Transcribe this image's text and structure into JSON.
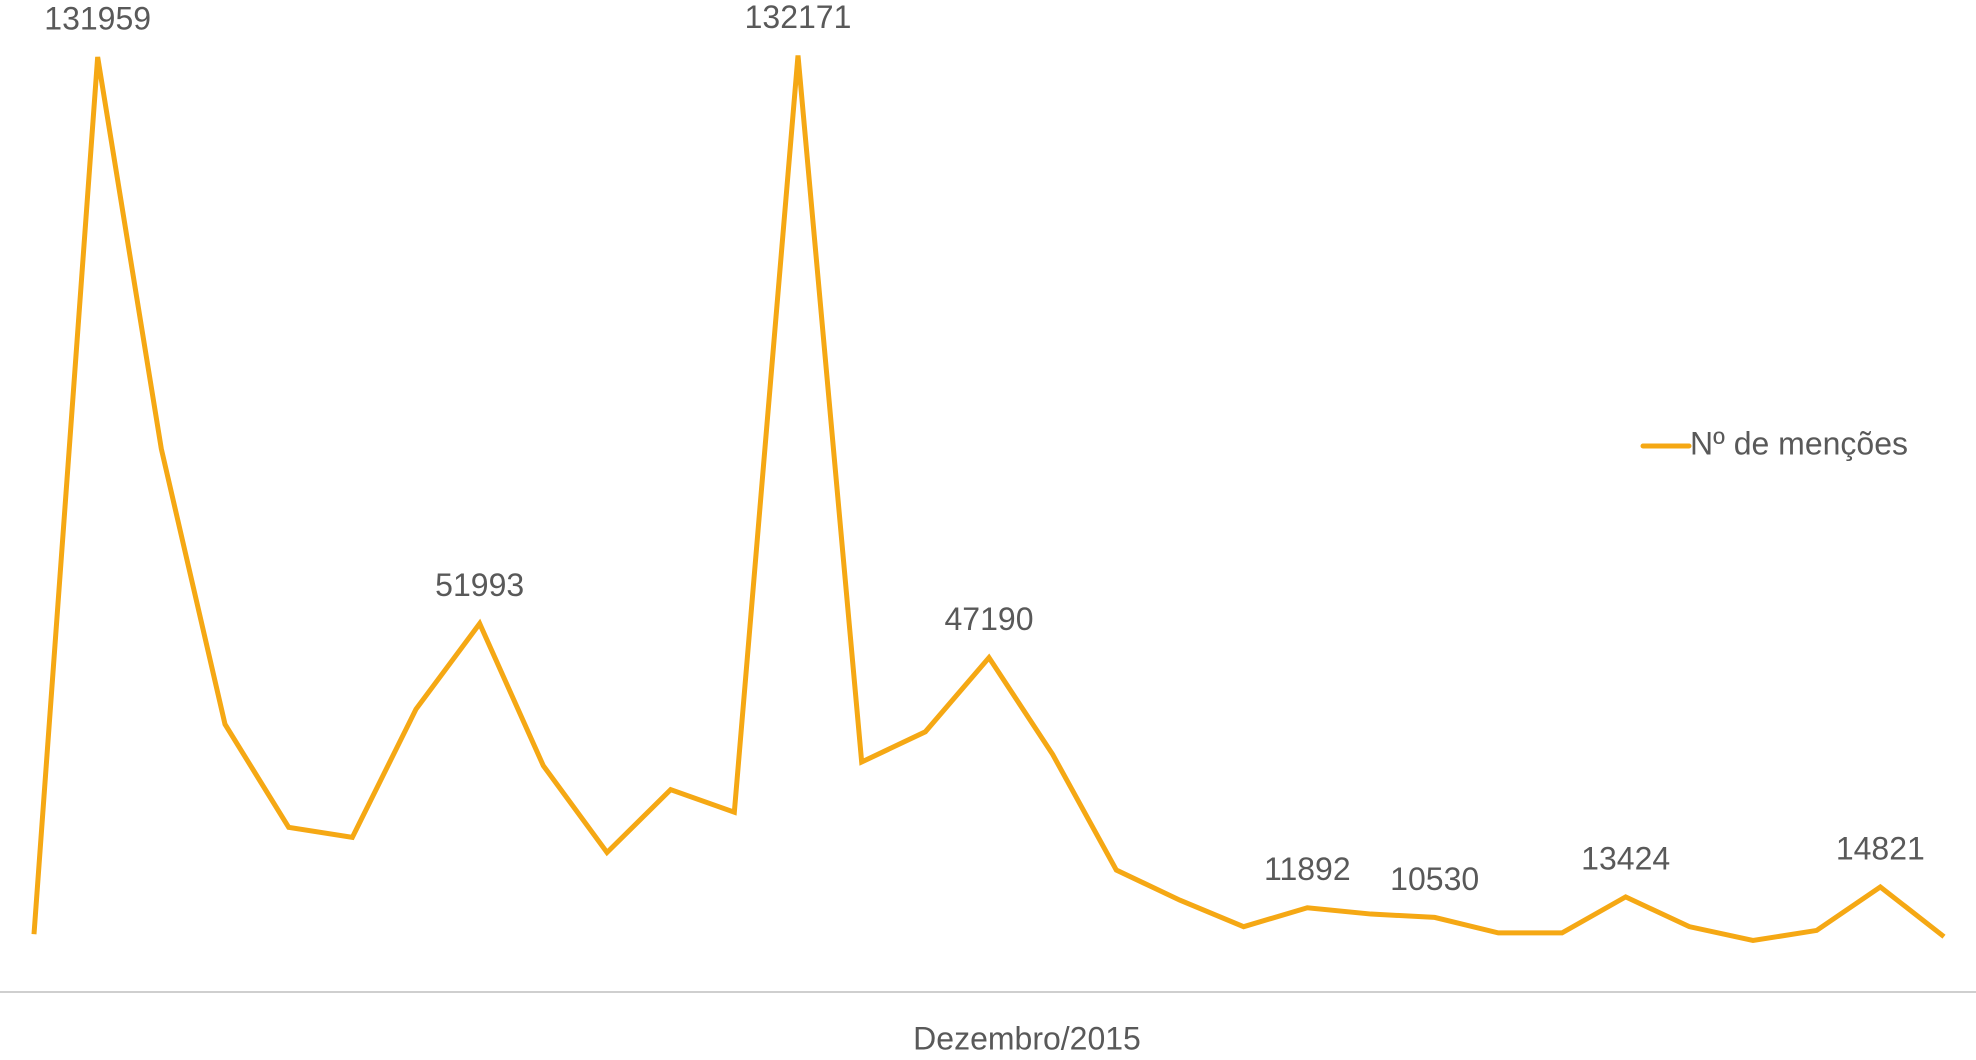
{
  "chart_data": {
    "type": "line",
    "x_label": "Dezembro/2015",
    "categories": [
      null,
      null,
      null,
      null,
      null,
      null,
      null,
      null,
      null,
      null,
      null,
      null,
      null,
      null,
      null,
      null,
      null,
      null,
      null,
      null,
      null,
      null,
      null,
      null,
      null,
      null,
      null,
      null,
      null,
      null,
      null
    ],
    "series": [
      {
        "name": "Nº de menções",
        "color": "#f5a814",
        "values": [
          8160,
          131959,
          76640,
          37790,
          23240,
          21820,
          39920,
          51993,
          31930,
          19690,
          28560,
          25370,
          132171,
          32460,
          36720,
          47190,
          33530,
          17210,
          12950,
          9220,
          11892,
          11000,
          10530,
          8340,
          8340,
          13424,
          9220,
          7270,
          8690,
          14821,
          7810
        ],
        "value_labels": [
          null,
          "131959",
          null,
          null,
          null,
          null,
          null,
          "51993",
          null,
          null,
          null,
          null,
          "132171",
          null,
          null,
          "47190",
          null,
          null,
          null,
          null,
          "11892",
          null,
          "10530",
          null,
          null,
          "13424",
          null,
          null,
          null,
          "14821",
          null
        ]
      }
    ],
    "ylim": [
      0,
      140000
    ],
    "grid": false,
    "legend_position": "right"
  }
}
